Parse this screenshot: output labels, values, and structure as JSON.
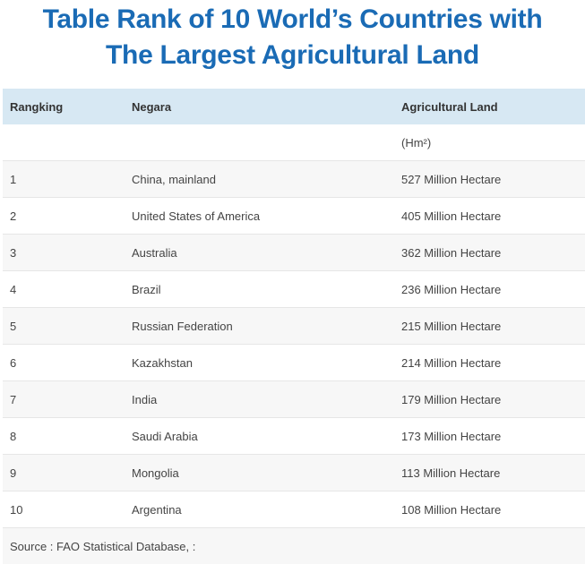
{
  "title": {
    "line1": "Table Rank of 10 World’s Countries with",
    "line2": "The Largest Agricultural Land"
  },
  "table": {
    "headers": [
      "Rangking",
      "Negara",
      "Agricultural Land"
    ],
    "unit": "(Hm²)",
    "rows": [
      {
        "rank": "1",
        "country": "China, mainland",
        "land": "527 Million Hectare"
      },
      {
        "rank": "2",
        "country": "United States of America",
        "land": "405 Million Hectare"
      },
      {
        "rank": "3",
        "country": "Australia",
        "land": "362 Million Hectare"
      },
      {
        "rank": "4",
        "country": "Brazil",
        "land": "236 Million Hectare"
      },
      {
        "rank": "5",
        "country": "Russian Federation",
        "land": "215 Million Hectare"
      },
      {
        "rank": "6",
        "country": "Kazakhstan",
        "land": "214 Million Hectare"
      },
      {
        "rank": "7",
        "country": "India",
        "land": "179 Million Hectare"
      },
      {
        "rank": "8",
        "country": "Saudi Arabia",
        "land": "173 Million Hectare"
      },
      {
        "rank": "9",
        "country": "Mongolia",
        "land": "113 Million Hectare"
      },
      {
        "rank": "10",
        "country": "Argentina",
        "land": "108 Million Hectare"
      }
    ],
    "source": "Source : FAO Statistical Database, :"
  }
}
